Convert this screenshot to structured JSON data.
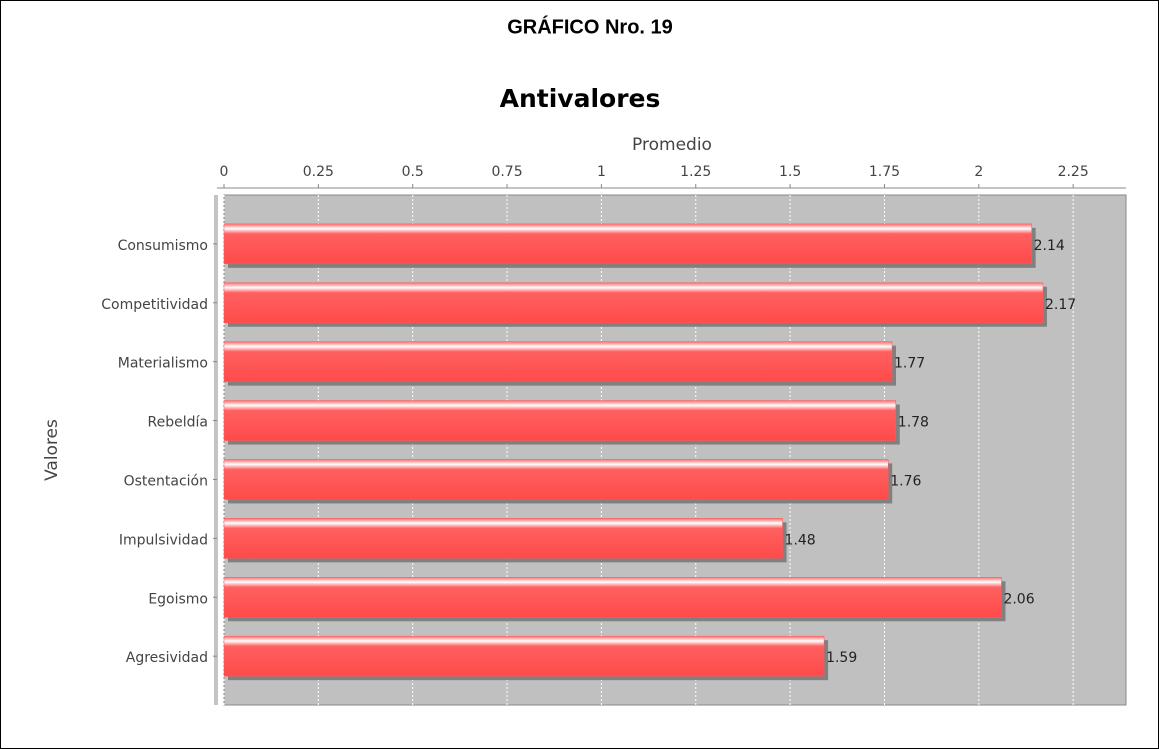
{
  "heading": "GRÁFICO Nro. 19",
  "chart_data": {
    "type": "bar",
    "orientation": "horizontal",
    "title": "Antivalores",
    "x_label": "Promedio",
    "y_label": "Valores",
    "categories": [
      "Consumismo",
      "Competitividad",
      "Materialismo",
      "Rebeldía",
      "Ostentación",
      "Impulsividad",
      "Egoismo",
      "Agresividad"
    ],
    "values": [
      2.14,
      2.17,
      1.77,
      1.78,
      1.76,
      1.48,
      2.06,
      1.59
    ],
    "color": "#ff5a5a",
    "xlim": [
      0,
      2.39
    ],
    "xticks": [
      0,
      0.25,
      0.5,
      0.75,
      1,
      1.25,
      1.5,
      1.75,
      2,
      2.25
    ],
    "grid": true
  }
}
